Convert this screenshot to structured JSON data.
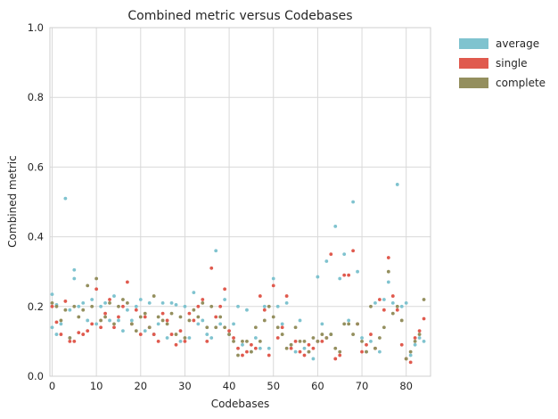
{
  "chart_data": {
    "type": "scatter",
    "title": "Combined metric versus Codebases",
    "xlabel": "Codebases",
    "ylabel": "Combined metric",
    "xlim": [
      -0.5,
      85.5
    ],
    "ylim": [
      0,
      1
    ],
    "xticks": [
      0,
      10,
      20,
      30,
      40,
      50,
      60,
      70,
      80
    ],
    "yticks": [
      0.0,
      0.2,
      0.4,
      0.6,
      0.8,
      1.0
    ],
    "grid": true,
    "legend_position": "outside-top-right",
    "series": [
      {
        "name": "average",
        "color": "#7fc3cf",
        "x": [
          0,
          0,
          1,
          1,
          2,
          3,
          4,
          4,
          5,
          5,
          6,
          7,
          8,
          9,
          10,
          11,
          12,
          13,
          14,
          15,
          16,
          17,
          18,
          19,
          20,
          21,
          22,
          23,
          24,
          25,
          26,
          27,
          28,
          29,
          30,
          31,
          32,
          33,
          34,
          35,
          36,
          37,
          38,
          39,
          40,
          41,
          42,
          43,
          44,
          45,
          46,
          47,
          48,
          49,
          50,
          51,
          52,
          53,
          54,
          55,
          56,
          57,
          58,
          59,
          60,
          61,
          62,
          63,
          64,
          65,
          66,
          67,
          68,
          69,
          70,
          71,
          72,
          73,
          74,
          75,
          76,
          77,
          78,
          79,
          80,
          81,
          82,
          83,
          84
        ],
        "y": [
          0.235,
          0.14,
          0.12,
          0.205,
          0.15,
          0.51,
          0.19,
          0.11,
          0.305,
          0.28,
          0.2,
          0.21,
          0.16,
          0.22,
          0.15,
          0.2,
          0.21,
          0.16,
          0.23,
          0.16,
          0.13,
          0.19,
          0.16,
          0.2,
          0.22,
          0.13,
          0.21,
          0.12,
          0.15,
          0.21,
          0.11,
          0.21,
          0.205,
          0.1,
          0.2,
          0.11,
          0.24,
          0.15,
          0.16,
          0.12,
          0.11,
          0.36,
          0.15,
          0.22,
          0.12,
          0.15,
          0.2,
          0.09,
          0.19,
          0.07,
          0.11,
          0.08,
          0.2,
          0.08,
          0.28,
          0.2,
          0.15,
          0.21,
          0.09,
          0.07,
          0.16,
          0.08,
          0.07,
          0.05,
          0.285,
          0.15,
          0.33,
          0.12,
          0.43,
          0.28,
          0.35,
          0.16,
          0.5,
          0.3,
          0.11,
          0.07,
          0.1,
          0.21,
          0.07,
          0.22,
          0.27,
          0.21,
          0.55,
          0.2,
          0.21,
          0.06,
          0.09,
          0.11,
          0.1
        ]
      },
      {
        "name": "single",
        "color": "#e05a4e",
        "x": [
          0,
          1,
          2,
          3,
          4,
          5,
          6,
          7,
          8,
          9,
          10,
          11,
          12,
          13,
          14,
          15,
          16,
          17,
          18,
          19,
          20,
          21,
          22,
          23,
          24,
          25,
          26,
          27,
          28,
          29,
          30,
          31,
          32,
          33,
          34,
          35,
          36,
          37,
          38,
          39,
          40,
          41,
          42,
          43,
          44,
          45,
          46,
          47,
          48,
          49,
          50,
          51,
          52,
          53,
          54,
          55,
          56,
          57,
          58,
          59,
          60,
          61,
          62,
          63,
          64,
          65,
          66,
          67,
          68,
          69,
          70,
          71,
          72,
          73,
          74,
          75,
          76,
          77,
          78,
          79,
          80,
          81,
          82,
          83,
          84
        ],
        "y": [
          0.2,
          0.155,
          0.12,
          0.215,
          0.1,
          0.1,
          0.125,
          0.12,
          0.13,
          0.15,
          0.25,
          0.14,
          0.18,
          0.22,
          0.14,
          0.17,
          0.2,
          0.27,
          0.15,
          0.19,
          0.12,
          0.17,
          0.14,
          0.12,
          0.1,
          0.18,
          0.16,
          0.12,
          0.09,
          0.13,
          0.1,
          0.18,
          0.16,
          0.2,
          0.22,
          0.1,
          0.31,
          0.17,
          0.2,
          0.25,
          0.13,
          0.11,
          0.08,
          0.06,
          0.07,
          0.09,
          0.08,
          0.23,
          0.19,
          0.06,
          0.26,
          0.11,
          0.14,
          0.23,
          0.08,
          0.1,
          0.07,
          0.06,
          0.09,
          0.08,
          0.1,
          0.1,
          0.11,
          0.35,
          0.05,
          0.06,
          0.29,
          0.29,
          0.36,
          0.15,
          0.07,
          0.09,
          0.12,
          0.08,
          0.22,
          0.19,
          0.34,
          0.23,
          0.19,
          0.09,
          0.05,
          0.04,
          0.11,
          0.13,
          0.165
        ]
      },
      {
        "name": "complete",
        "color": "#948f5e",
        "x": [
          0,
          1,
          2,
          3,
          4,
          5,
          6,
          7,
          8,
          9,
          10,
          11,
          12,
          13,
          14,
          15,
          16,
          17,
          18,
          19,
          20,
          21,
          22,
          23,
          24,
          25,
          26,
          27,
          28,
          29,
          30,
          31,
          32,
          33,
          34,
          35,
          36,
          37,
          38,
          39,
          40,
          41,
          42,
          43,
          44,
          45,
          46,
          47,
          48,
          49,
          50,
          51,
          52,
          53,
          54,
          55,
          56,
          57,
          58,
          59,
          60,
          61,
          62,
          63,
          64,
          65,
          66,
          67,
          68,
          69,
          70,
          71,
          72,
          73,
          74,
          75,
          76,
          77,
          78,
          79,
          80,
          81,
          82,
          83,
          84
        ],
        "y": [
          0.21,
          0.2,
          0.16,
          0.19,
          0.11,
          0.2,
          0.17,
          0.19,
          0.26,
          0.2,
          0.28,
          0.16,
          0.17,
          0.21,
          0.15,
          0.2,
          0.22,
          0.21,
          0.15,
          0.13,
          0.17,
          0.18,
          0.14,
          0.23,
          0.17,
          0.16,
          0.15,
          0.18,
          0.12,
          0.17,
          0.11,
          0.16,
          0.19,
          0.17,
          0.21,
          0.14,
          0.2,
          0.14,
          0.17,
          0.14,
          0.12,
          0.1,
          0.06,
          0.1,
          0.1,
          0.07,
          0.14,
          0.1,
          0.16,
          0.2,
          0.17,
          0.14,
          0.12,
          0.08,
          0.09,
          0.14,
          0.1,
          0.1,
          0.07,
          0.11,
          0.1,
          0.12,
          0.11,
          0.12,
          0.08,
          0.07,
          0.15,
          0.15,
          0.12,
          0.15,
          0.1,
          0.07,
          0.2,
          0.08,
          0.11,
          0.14,
          0.3,
          0.18,
          0.2,
          0.16,
          0.05,
          0.07,
          0.1,
          0.12,
          0.22
        ]
      }
    ]
  }
}
